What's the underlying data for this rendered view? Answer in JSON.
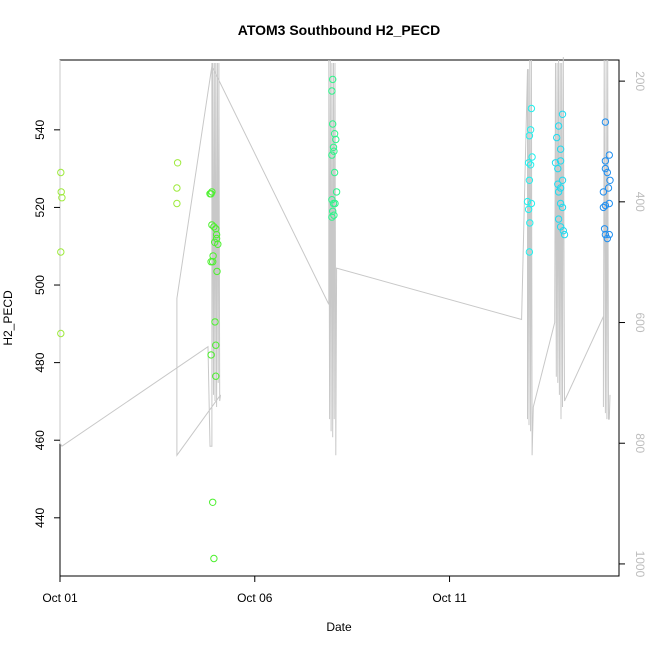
{
  "chart_data": {
    "type": "scatter",
    "title": "ATOM3 Southbound H2_PECD",
    "xlabel": "Date",
    "ylabel": "H2_PECD",
    "x_ticks": [
      "Oct 01",
      "Oct 06",
      "Oct 11"
    ],
    "y_ticks": [
      "440",
      "460",
      "480",
      "500",
      "520",
      "540"
    ],
    "y2_ticks": [
      "200",
      "400",
      "600",
      "800",
      "1000"
    ],
    "ylim": [
      425,
      558
    ],
    "y2lim": [
      1020,
      165
    ],
    "xlim": [
      0,
      14.35
    ],
    "colors": {
      "yellowgreen": "#9eea3c",
      "green": "#4cf02e",
      "springgreen": "#2ef58a",
      "aqua": "#22f0ee",
      "cyan": "#1edbf0",
      "blue": "#1e8ef0",
      "trace": "#c8c8c8"
    },
    "series": [
      {
        "color_key": "yellowgreen",
        "points": [
          [
            0.02,
            529
          ],
          [
            0.03,
            524
          ],
          [
            0.05,
            522.5
          ],
          [
            0.02,
            508.5
          ],
          [
            0.02,
            487.5
          ]
        ]
      },
      {
        "color_key": "yellowgreen",
        "points": [
          [
            3.02,
            531.5
          ],
          [
            3.0,
            525
          ],
          [
            3.0,
            521
          ]
        ]
      },
      {
        "color_key": "green",
        "points": [
          [
            3.85,
            523.5
          ],
          [
            3.9,
            524
          ],
          [
            3.88,
            523.5
          ],
          [
            3.9,
            515.5
          ],
          [
            3.95,
            515
          ],
          [
            4.0,
            514.5
          ],
          [
            4.02,
            512
          ],
          [
            3.97,
            511
          ],
          [
            4.05,
            510.5
          ],
          [
            4.02,
            513
          ],
          [
            3.93,
            507.5
          ],
          [
            3.88,
            506
          ],
          [
            3.92,
            506
          ],
          [
            4.03,
            503.5
          ],
          [
            3.98,
            490.5
          ],
          [
            4.0,
            484.5
          ],
          [
            3.88,
            482
          ],
          [
            4.0,
            476.5
          ],
          [
            3.92,
            444
          ],
          [
            3.95,
            429.5
          ]
        ]
      },
      {
        "color_key": "springgreen",
        "points": [
          [
            7.0,
            553
          ],
          [
            6.98,
            550
          ],
          [
            7.0,
            541.5
          ],
          [
            7.05,
            539
          ],
          [
            7.08,
            537.5
          ],
          [
            7.02,
            535.5
          ],
          [
            7.03,
            534.5
          ],
          [
            6.98,
            533.5
          ],
          [
            7.05,
            529
          ],
          [
            7.1,
            524
          ],
          [
            6.98,
            522
          ],
          [
            7.02,
            521
          ],
          [
            7.06,
            521
          ],
          [
            7.0,
            519
          ],
          [
            7.03,
            518
          ],
          [
            6.98,
            517.5
          ]
        ]
      },
      {
        "color_key": "aqua",
        "points": [
          [
            12.1,
            545.5
          ],
          [
            12.08,
            540
          ],
          [
            12.05,
            538.5
          ],
          [
            12.12,
            533
          ],
          [
            12.03,
            531.5
          ],
          [
            12.08,
            531
          ],
          [
            12.05,
            527
          ],
          [
            12.0,
            521.5
          ],
          [
            12.1,
            521
          ],
          [
            12.03,
            519.5
          ],
          [
            12.06,
            516
          ],
          [
            12.05,
            508.5
          ]
        ]
      },
      {
        "color_key": "cyan",
        "points": [
          [
            12.9,
            544
          ],
          [
            12.8,
            541
          ],
          [
            12.75,
            538
          ],
          [
            12.85,
            535
          ],
          [
            12.85,
            532
          ],
          [
            12.72,
            531.5
          ],
          [
            12.78,
            530
          ],
          [
            12.9,
            527
          ],
          [
            12.78,
            526
          ],
          [
            12.85,
            525
          ],
          [
            12.8,
            524
          ],
          [
            12.85,
            521
          ],
          [
            12.9,
            520
          ],
          [
            12.8,
            517
          ],
          [
            12.85,
            515
          ],
          [
            12.92,
            514
          ],
          [
            12.95,
            513
          ]
        ]
      },
      {
        "color_key": "blue",
        "points": [
          [
            14.0,
            542
          ],
          [
            14.1,
            533.5
          ],
          [
            14.0,
            532
          ],
          [
            14.0,
            530
          ],
          [
            14.05,
            529
          ],
          [
            14.12,
            527
          ],
          [
            14.08,
            525
          ],
          [
            13.95,
            524
          ],
          [
            14.1,
            521
          ],
          [
            14.0,
            520.5
          ],
          [
            13.95,
            520
          ],
          [
            13.98,
            514.5
          ],
          [
            14.0,
            513
          ],
          [
            14.05,
            512
          ],
          [
            14.1,
            513
          ]
        ]
      }
    ],
    "trace": {
      "color_key": "trace",
      "axis": "right",
      "points": [
        [
          0.0,
          165
        ],
        [
          0.0,
          800
        ],
        [
          0.05,
          805
        ],
        [
          3.8,
          640
        ],
        [
          3.85,
          805
        ],
        [
          3.9,
          805
        ],
        [
          3.9,
          170
        ],
        [
          3.9,
          175
        ],
        [
          3.9,
          740
        ],
        [
          3.92,
          170
        ],
        [
          3.94,
          720
        ],
        [
          3.96,
          170
        ],
        [
          3.98,
          730
        ],
        [
          4.0,
          170
        ],
        [
          4.02,
          740
        ],
        [
          4.04,
          170
        ],
        [
          4.06,
          700
        ],
        [
          4.08,
          170
        ],
        [
          4.1,
          730
        ],
        [
          4.12,
          720
        ],
        [
          3.0,
          820
        ],
        [
          3.0,
          560
        ],
        [
          3.9,
          175
        ],
        [
          6.9,
          570
        ],
        [
          6.9,
          165
        ],
        [
          6.92,
          760
        ],
        [
          6.94,
          165
        ],
        [
          6.96,
          780
        ],
        [
          6.98,
          170
        ],
        [
          7.0,
          790
        ],
        [
          7.02,
          170
        ],
        [
          7.04,
          760
        ],
        [
          7.06,
          170
        ],
        [
          7.08,
          820
        ],
        [
          7.1,
          510
        ],
        [
          11.85,
          595
        ],
        [
          12.0,
          180
        ],
        [
          12.0,
          760
        ],
        [
          12.02,
          180
        ],
        [
          12.04,
          770
        ],
        [
          12.06,
          165
        ],
        [
          12.08,
          780
        ],
        [
          12.1,
          165
        ],
        [
          12.12,
          820
        ],
        [
          12.15,
          740
        ],
        [
          12.7,
          600
        ],
        [
          12.72,
          170
        ],
        [
          12.74,
          690
        ],
        [
          12.76,
          170
        ],
        [
          12.78,
          700
        ],
        [
          12.8,
          165
        ],
        [
          12.82,
          720
        ],
        [
          12.84,
          170
        ],
        [
          12.86,
          760
        ],
        [
          12.88,
          170
        ],
        [
          12.9,
          740
        ],
        [
          12.92,
          160
        ],
        [
          12.95,
          730
        ],
        [
          13.95,
          590
        ],
        [
          13.95,
          740
        ],
        [
          13.97,
          165
        ],
        [
          14.0,
          750
        ],
        [
          14.02,
          165
        ],
        [
          14.04,
          760
        ],
        [
          14.06,
          165
        ],
        [
          14.08,
          760
        ],
        [
          14.1,
          760
        ],
        [
          14.12,
          720
        ]
      ]
    }
  }
}
